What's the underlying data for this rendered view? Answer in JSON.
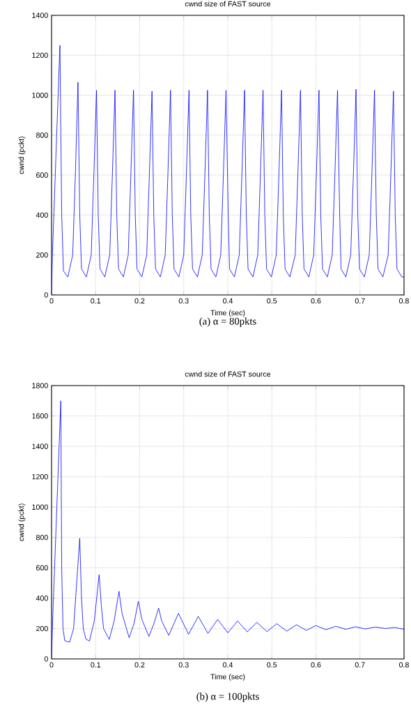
{
  "chart_data": [
    {
      "type": "line",
      "title": "cwnd size of FAST source",
      "xlabel": "Time (sec)",
      "ylabel": "cwnd (pckt)",
      "color": "#0000ff",
      "grid": true,
      "annotations": [
        "(a)  α = 80pkts"
      ],
      "xlim": [
        0,
        0.8
      ],
      "ylim": [
        0,
        1400
      ],
      "xticks": [
        0,
        0.1,
        0.2,
        0.3,
        0.4,
        0.5,
        0.6,
        0.7,
        0.8
      ],
      "yticks": [
        0,
        200,
        400,
        600,
        800,
        1000,
        1200,
        1400
      ],
      "x": [
        0,
        0.002,
        0.01,
        0.019,
        0.023,
        0.027,
        0.037,
        0.048,
        0.054,
        0.06,
        0.064,
        0.068,
        0.079,
        0.09,
        0.096,
        0.102,
        0.106,
        0.11,
        0.121,
        0.132,
        0.138,
        0.144,
        0.148,
        0.152,
        0.163,
        0.174,
        0.18,
        0.186,
        0.19,
        0.194,
        0.205,
        0.216,
        0.222,
        0.228,
        0.232,
        0.236,
        0.247,
        0.258,
        0.264,
        0.27,
        0.274,
        0.278,
        0.289,
        0.3,
        0.306,
        0.312,
        0.316,
        0.32,
        0.331,
        0.342,
        0.348,
        0.354,
        0.358,
        0.362,
        0.373,
        0.384,
        0.39,
        0.396,
        0.401,
        0.404,
        0.415,
        0.426,
        0.432,
        0.438,
        0.442,
        0.446,
        0.457,
        0.468,
        0.474,
        0.48,
        0.484,
        0.488,
        0.499,
        0.51,
        0.516,
        0.522,
        0.526,
        0.53,
        0.541,
        0.553,
        0.559,
        0.565,
        0.569,
        0.573,
        0.584,
        0.595,
        0.601,
        0.607,
        0.611,
        0.615,
        0.626,
        0.637,
        0.643,
        0.649,
        0.654,
        0.657,
        0.668,
        0.679,
        0.685,
        0.691,
        0.695,
        0.699,
        0.71,
        0.721,
        0.727,
        0.733,
        0.737,
        0.741,
        0.752,
        0.764,
        0.77,
        0.776,
        0.78,
        0.784,
        0.795,
        0.8
      ],
      "values": [
        0,
        200,
        700,
        1250,
        400,
        120,
        90,
        200,
        600,
        1065,
        400,
        130,
        90,
        200,
        600,
        1025,
        400,
        130,
        90,
        200,
        600,
        1025,
        400,
        130,
        90,
        200,
        600,
        1025,
        400,
        130,
        90,
        200,
        600,
        1020,
        400,
        130,
        90,
        200,
        600,
        1025,
        400,
        130,
        90,
        200,
        600,
        1025,
        400,
        130,
        90,
        200,
        600,
        1025,
        400,
        130,
        90,
        200,
        600,
        1025,
        400,
        130,
        90,
        200,
        600,
        1025,
        400,
        130,
        90,
        200,
        600,
        1025,
        400,
        130,
        90,
        200,
        600,
        1025,
        400,
        130,
        90,
        200,
        600,
        1025,
        400,
        130,
        90,
        200,
        600,
        1025,
        400,
        130,
        90,
        200,
        600,
        1025,
        400,
        130,
        90,
        200,
        600,
        1030,
        400,
        130,
        90,
        200,
        600,
        1025,
        400,
        130,
        90,
        200,
        600,
        1020,
        400,
        130,
        90,
        90
      ]
    },
    {
      "type": "line",
      "title": "cwnd size of FAST source",
      "xlabel": "Time (sec)",
      "ylabel": "cwnd (pckt)",
      "color": "#0000ff",
      "grid": true,
      "annotations": [
        "(b)  α = 100pkts"
      ],
      "xlim": [
        0,
        0.8
      ],
      "ylim": [
        0,
        1800
      ],
      "xticks": [
        0,
        0.1,
        0.2,
        0.3,
        0.4,
        0.5,
        0.6,
        0.7,
        0.8
      ],
      "yticks": [
        0,
        200,
        400,
        600,
        800,
        1000,
        1200,
        1400,
        1600,
        1800
      ],
      "x": [
        0,
        0.003,
        0.012,
        0.021,
        0.023,
        0.026,
        0.03,
        0.041,
        0.05,
        0.057,
        0.064,
        0.068,
        0.072,
        0.078,
        0.086,
        0.097,
        0.108,
        0.113,
        0.118,
        0.131,
        0.142,
        0.153,
        0.16,
        0.176,
        0.187,
        0.197,
        0.205,
        0.221,
        0.232,
        0.243,
        0.25,
        0.266,
        0.288,
        0.311,
        0.333,
        0.355,
        0.377,
        0.4,
        0.422,
        0.444,
        0.466,
        0.489,
        0.511,
        0.534,
        0.556,
        0.578,
        0.6,
        0.623,
        0.645,
        0.668,
        0.69,
        0.712,
        0.735,
        0.757,
        0.779,
        0.8
      ],
      "values": [
        0,
        300,
        1000,
        1700,
        600,
        200,
        120,
        110,
        200,
        500,
        795,
        400,
        200,
        130,
        118,
        250,
        555,
        350,
        200,
        128,
        250,
        445,
        300,
        140,
        230,
        380,
        260,
        148,
        230,
        335,
        250,
        155,
        300,
        162,
        280,
        168,
        260,
        172,
        250,
        178,
        240,
        180,
        232,
        183,
        225,
        188,
        220,
        192,
        215,
        195,
        212,
        197,
        210,
        200,
        207,
        195
      ]
    }
  ]
}
